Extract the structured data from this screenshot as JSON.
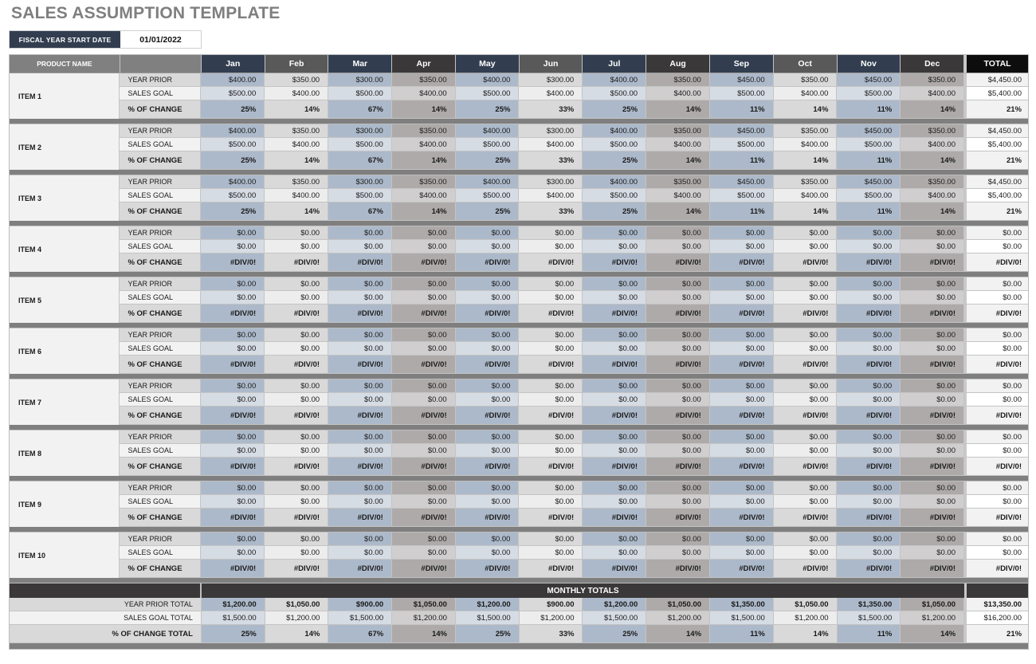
{
  "title": "SALES ASSUMPTION TEMPLATE",
  "fiscal": {
    "label": "FISCAL YEAR START DATE",
    "value": "01/01/2022"
  },
  "header": {
    "product_name": "PRODUCT NAME",
    "sub": "",
    "months": [
      "Jan",
      "Feb",
      "Mar",
      "Apr",
      "May",
      "Jun",
      "Jul",
      "Aug",
      "Sep",
      "Oct",
      "Nov",
      "Dec"
    ],
    "total": "TOTAL"
  },
  "colors": {
    "header_navy": "#323e50",
    "header_gray": "#595959",
    "header_dark": "#3a3838",
    "total_header": "#0d0d0d",
    "blue_cell": "#acb9ca",
    "light_blue_cell": "#d6dce4",
    "taupe_cell": "#aeaaaa",
    "separator": "#7f7f7f"
  },
  "row_labels": {
    "year_prior": "YEAR PRIOR",
    "sales_goal": "SALES GOAL",
    "pct_change": "% OF CHANGE"
  },
  "items": [
    {
      "name": "ITEM 1",
      "year_prior": [
        "$400.00",
        "$350.00",
        "$300.00",
        "$350.00",
        "$400.00",
        "$300.00",
        "$400.00",
        "$350.00",
        "$450.00",
        "$350.00",
        "$450.00",
        "$350.00"
      ],
      "year_prior_total": "$4,450.00",
      "sales_goal": [
        "$500.00",
        "$400.00",
        "$500.00",
        "$400.00",
        "$500.00",
        "$400.00",
        "$500.00",
        "$400.00",
        "$500.00",
        "$400.00",
        "$500.00",
        "$400.00"
      ],
      "sales_goal_total": "$5,400.00",
      "pct_change": [
        "25%",
        "14%",
        "67%",
        "14%",
        "25%",
        "33%",
        "25%",
        "14%",
        "11%",
        "14%",
        "11%",
        "14%"
      ],
      "pct_change_total": "21%"
    },
    {
      "name": "ITEM 2",
      "year_prior": [
        "$400.00",
        "$350.00",
        "$300.00",
        "$350.00",
        "$400.00",
        "$300.00",
        "$400.00",
        "$350.00",
        "$450.00",
        "$350.00",
        "$450.00",
        "$350.00"
      ],
      "year_prior_total": "$4,450.00",
      "sales_goal": [
        "$500.00",
        "$400.00",
        "$500.00",
        "$400.00",
        "$500.00",
        "$400.00",
        "$500.00",
        "$400.00",
        "$500.00",
        "$400.00",
        "$500.00",
        "$400.00"
      ],
      "sales_goal_total": "$5,400.00",
      "pct_change": [
        "25%",
        "14%",
        "67%",
        "14%",
        "25%",
        "33%",
        "25%",
        "14%",
        "11%",
        "14%",
        "11%",
        "14%"
      ],
      "pct_change_total": "21%"
    },
    {
      "name": "ITEM 3",
      "year_prior": [
        "$400.00",
        "$350.00",
        "$300.00",
        "$350.00",
        "$400.00",
        "$300.00",
        "$400.00",
        "$350.00",
        "$450.00",
        "$350.00",
        "$450.00",
        "$350.00"
      ],
      "year_prior_total": "$4,450.00",
      "sales_goal": [
        "$500.00",
        "$400.00",
        "$500.00",
        "$400.00",
        "$500.00",
        "$400.00",
        "$500.00",
        "$400.00",
        "$500.00",
        "$400.00",
        "$500.00",
        "$400.00"
      ],
      "sales_goal_total": "$5,400.00",
      "pct_change": [
        "25%",
        "14%",
        "67%",
        "14%",
        "25%",
        "33%",
        "25%",
        "14%",
        "11%",
        "14%",
        "11%",
        "14%"
      ],
      "pct_change_total": "21%"
    },
    {
      "name": "ITEM 4",
      "year_prior": [
        "$0.00",
        "$0.00",
        "$0.00",
        "$0.00",
        "$0.00",
        "$0.00",
        "$0.00",
        "$0.00",
        "$0.00",
        "$0.00",
        "$0.00",
        "$0.00"
      ],
      "year_prior_total": "$0.00",
      "sales_goal": [
        "$0.00",
        "$0.00",
        "$0.00",
        "$0.00",
        "$0.00",
        "$0.00",
        "$0.00",
        "$0.00",
        "$0.00",
        "$0.00",
        "$0.00",
        "$0.00"
      ],
      "sales_goal_total": "$0.00",
      "pct_change": [
        "#DIV/0!",
        "#DIV/0!",
        "#DIV/0!",
        "#DIV/0!",
        "#DIV/0!",
        "#DIV/0!",
        "#DIV/0!",
        "#DIV/0!",
        "#DIV/0!",
        "#DIV/0!",
        "#DIV/0!",
        "#DIV/0!"
      ],
      "pct_change_total": "#DIV/0!"
    },
    {
      "name": "ITEM 5",
      "year_prior": [
        "$0.00",
        "$0.00",
        "$0.00",
        "$0.00",
        "$0.00",
        "$0.00",
        "$0.00",
        "$0.00",
        "$0.00",
        "$0.00",
        "$0.00",
        "$0.00"
      ],
      "year_prior_total": "$0.00",
      "sales_goal": [
        "$0.00",
        "$0.00",
        "$0.00",
        "$0.00",
        "$0.00",
        "$0.00",
        "$0.00",
        "$0.00",
        "$0.00",
        "$0.00",
        "$0.00",
        "$0.00"
      ],
      "sales_goal_total": "$0.00",
      "pct_change": [
        "#DIV/0!",
        "#DIV/0!",
        "#DIV/0!",
        "#DIV/0!",
        "#DIV/0!",
        "#DIV/0!",
        "#DIV/0!",
        "#DIV/0!",
        "#DIV/0!",
        "#DIV/0!",
        "#DIV/0!",
        "#DIV/0!"
      ],
      "pct_change_total": "#DIV/0!"
    },
    {
      "name": "ITEM 6",
      "year_prior": [
        "$0.00",
        "$0.00",
        "$0.00",
        "$0.00",
        "$0.00",
        "$0.00",
        "$0.00",
        "$0.00",
        "$0.00",
        "$0.00",
        "$0.00",
        "$0.00"
      ],
      "year_prior_total": "$0.00",
      "sales_goal": [
        "$0.00",
        "$0.00",
        "$0.00",
        "$0.00",
        "$0.00",
        "$0.00",
        "$0.00",
        "$0.00",
        "$0.00",
        "$0.00",
        "$0.00",
        "$0.00"
      ],
      "sales_goal_total": "$0.00",
      "pct_change": [
        "#DIV/0!",
        "#DIV/0!",
        "#DIV/0!",
        "#DIV/0!",
        "#DIV/0!",
        "#DIV/0!",
        "#DIV/0!",
        "#DIV/0!",
        "#DIV/0!",
        "#DIV/0!",
        "#DIV/0!",
        "#DIV/0!"
      ],
      "pct_change_total": "#DIV/0!"
    },
    {
      "name": "ITEM 7",
      "year_prior": [
        "$0.00",
        "$0.00",
        "$0.00",
        "$0.00",
        "$0.00",
        "$0.00",
        "$0.00",
        "$0.00",
        "$0.00",
        "$0.00",
        "$0.00",
        "$0.00"
      ],
      "year_prior_total": "$0.00",
      "sales_goal": [
        "$0.00",
        "$0.00",
        "$0.00",
        "$0.00",
        "$0.00",
        "$0.00",
        "$0.00",
        "$0.00",
        "$0.00",
        "$0.00",
        "$0.00",
        "$0.00"
      ],
      "sales_goal_total": "$0.00",
      "pct_change": [
        "#DIV/0!",
        "#DIV/0!",
        "#DIV/0!",
        "#DIV/0!",
        "#DIV/0!",
        "#DIV/0!",
        "#DIV/0!",
        "#DIV/0!",
        "#DIV/0!",
        "#DIV/0!",
        "#DIV/0!",
        "#DIV/0!"
      ],
      "pct_change_total": "#DIV/0!"
    },
    {
      "name": "ITEM 8",
      "year_prior": [
        "$0.00",
        "$0.00",
        "$0.00",
        "$0.00",
        "$0.00",
        "$0.00",
        "$0.00",
        "$0.00",
        "$0.00",
        "$0.00",
        "$0.00",
        "$0.00"
      ],
      "year_prior_total": "$0.00",
      "sales_goal": [
        "$0.00",
        "$0.00",
        "$0.00",
        "$0.00",
        "$0.00",
        "$0.00",
        "$0.00",
        "$0.00",
        "$0.00",
        "$0.00",
        "$0.00",
        "$0.00"
      ],
      "sales_goal_total": "$0.00",
      "pct_change": [
        "#DIV/0!",
        "#DIV/0!",
        "#DIV/0!",
        "#DIV/0!",
        "#DIV/0!",
        "#DIV/0!",
        "#DIV/0!",
        "#DIV/0!",
        "#DIV/0!",
        "#DIV/0!",
        "#DIV/0!",
        "#DIV/0!"
      ],
      "pct_change_total": "#DIV/0!"
    },
    {
      "name": "ITEM 9",
      "year_prior": [
        "$0.00",
        "$0.00",
        "$0.00",
        "$0.00",
        "$0.00",
        "$0.00",
        "$0.00",
        "$0.00",
        "$0.00",
        "$0.00",
        "$0.00",
        "$0.00"
      ],
      "year_prior_total": "$0.00",
      "sales_goal": [
        "$0.00",
        "$0.00",
        "$0.00",
        "$0.00",
        "$0.00",
        "$0.00",
        "$0.00",
        "$0.00",
        "$0.00",
        "$0.00",
        "$0.00",
        "$0.00"
      ],
      "sales_goal_total": "$0.00",
      "pct_change": [
        "#DIV/0!",
        "#DIV/0!",
        "#DIV/0!",
        "#DIV/0!",
        "#DIV/0!",
        "#DIV/0!",
        "#DIV/0!",
        "#DIV/0!",
        "#DIV/0!",
        "#DIV/0!",
        "#DIV/0!",
        "#DIV/0!"
      ],
      "pct_change_total": "#DIV/0!"
    },
    {
      "name": "ITEM 10",
      "year_prior": [
        "$0.00",
        "$0.00",
        "$0.00",
        "$0.00",
        "$0.00",
        "$0.00",
        "$0.00",
        "$0.00",
        "$0.00",
        "$0.00",
        "$0.00",
        "$0.00"
      ],
      "year_prior_total": "$0.00",
      "sales_goal": [
        "$0.00",
        "$0.00",
        "$0.00",
        "$0.00",
        "$0.00",
        "$0.00",
        "$0.00",
        "$0.00",
        "$0.00",
        "$0.00",
        "$0.00",
        "$0.00"
      ],
      "sales_goal_total": "$0.00",
      "pct_change": [
        "#DIV/0!",
        "#DIV/0!",
        "#DIV/0!",
        "#DIV/0!",
        "#DIV/0!",
        "#DIV/0!",
        "#DIV/0!",
        "#DIV/0!",
        "#DIV/0!",
        "#DIV/0!",
        "#DIV/0!",
        "#DIV/0!"
      ],
      "pct_change_total": "#DIV/0!"
    }
  ],
  "totals": {
    "header": "MONTHLY TOTALS",
    "year_prior_label": "YEAR PRIOR TOTAL",
    "sales_goal_label": "SALES GOAL TOTAL",
    "pct_change_label": "% OF CHANGE TOTAL",
    "year_prior": [
      "$1,200.00",
      "$1,050.00",
      "$900.00",
      "$1,050.00",
      "$1,200.00",
      "$900.00",
      "$1,200.00",
      "$1,050.00",
      "$1,350.00",
      "$1,050.00",
      "$1,350.00",
      "$1,050.00"
    ],
    "year_prior_total": "$13,350.00",
    "sales_goal": [
      "$1,500.00",
      "$1,200.00",
      "$1,500.00",
      "$1,200.00",
      "$1,500.00",
      "$1,200.00",
      "$1,500.00",
      "$1,200.00",
      "$1,500.00",
      "$1,200.00",
      "$1,500.00",
      "$1,200.00"
    ],
    "sales_goal_total": "$16,200.00",
    "pct_change": [
      "25%",
      "14%",
      "67%",
      "14%",
      "25%",
      "33%",
      "25%",
      "14%",
      "11%",
      "14%",
      "11%",
      "14%"
    ],
    "pct_change_total": "21%"
  }
}
